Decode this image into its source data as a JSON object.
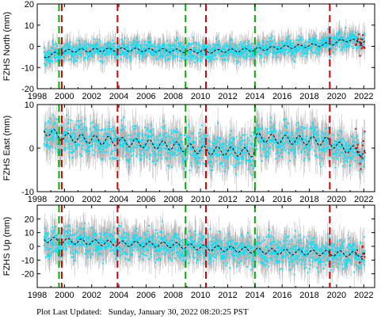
{
  "footer": {
    "label": "Plot Last Updated:",
    "value": "Sunday, January 30, 2022 08:20:25 PST"
  },
  "colors": {
    "data_points": "#00e5ff",
    "error_bars": "#b0b0b0",
    "recent_points": "#dd0000",
    "model_line": "#000000",
    "equipment_change": "#dd0000",
    "earthquake": "#00b000"
  },
  "chart_data": [
    {
      "type": "scatter",
      "component": "north",
      "ylabel": "FZHS North (mm)",
      "xlim": [
        1998,
        2022.8
      ],
      "ylim": [
        -20,
        20
      ],
      "xticks": [
        1998,
        2000,
        2002,
        2004,
        2006,
        2008,
        2010,
        2012,
        2014,
        2016,
        2018,
        2020,
        2022
      ],
      "yticks": [
        -20,
        -10,
        0,
        10,
        20
      ],
      "data_start": 1998.5,
      "data_end": 2022.1,
      "spread": 2.2,
      "error_size": 4,
      "model": {
        "x": [
          1998.5,
          1999.6,
          2000.5,
          2004.0,
          2008.0,
          2010.3,
          2014.0,
          2016.0,
          2019.5,
          2020.6,
          2022.1
        ],
        "y": [
          -5,
          -3,
          -2,
          -1.5,
          -2,
          -2.5,
          -1.5,
          -0.5,
          1,
          3,
          2
        ],
        "seasonal_amplitude": 0.8
      },
      "red_lines": [
        1999.8,
        2003.9,
        2010.4,
        2019.5
      ],
      "green_lines": [
        1999.6,
        2008.9,
        2014.0
      ]
    },
    {
      "type": "scatter",
      "component": "east",
      "ylabel": "FZHS East (mm)",
      "xlim": [
        1998,
        2022.8
      ],
      "ylim": [
        -10,
        10
      ],
      "xticks": [
        1998,
        2000,
        2002,
        2004,
        2006,
        2008,
        2010,
        2012,
        2014,
        2016,
        2018,
        2020,
        2022
      ],
      "yticks": [
        -10,
        0,
        10
      ],
      "data_start": 1998.5,
      "data_end": 2022.1,
      "spread": 2.0,
      "error_size": 3,
      "model": {
        "x": [
          1998.5,
          2000.0,
          2004.0,
          2008.0,
          2010.3,
          2013.9,
          2014.1,
          2016.0,
          2019.4,
          2020.5,
          2022.1
        ],
        "y": [
          4,
          2.5,
          1.5,
          0.5,
          -0.5,
          -1,
          2.5,
          2,
          1.5,
          0,
          -1
        ],
        "seasonal_amplitude": 1.0
      },
      "red_lines": [
        1999.8,
        2003.9,
        2010.4,
        2019.5
      ],
      "green_lines": [
        1999.6,
        2008.9,
        2014.0
      ]
    },
    {
      "type": "scatter",
      "component": "up",
      "ylabel": "FZHS Up (mm)",
      "xlim": [
        1998,
        2022.8
      ],
      "ylim": [
        -30,
        30
      ],
      "xticks": [
        1998,
        2000,
        2002,
        2004,
        2006,
        2008,
        2010,
        2012,
        2014,
        2016,
        2018,
        2020,
        2022
      ],
      "yticks": [
        -20,
        -10,
        0,
        10,
        20
      ],
      "data_start": 1998.5,
      "data_end": 2022.1,
      "spread": 5.5,
      "error_size": 9,
      "model": {
        "x": [
          1998.5,
          2000.0,
          2004.0,
          2008.0,
          2010.3,
          2014.0,
          2016.0,
          2019.5,
          2022.1
        ],
        "y": [
          5,
          4,
          2,
          1,
          -1,
          -3,
          -4,
          -5,
          -6
        ],
        "seasonal_amplitude": 2.0
      },
      "red_lines": [
        1999.8,
        2003.9,
        2010.4,
        2019.5
      ],
      "green_lines": [
        1999.6,
        2008.9,
        2014.0
      ]
    }
  ]
}
